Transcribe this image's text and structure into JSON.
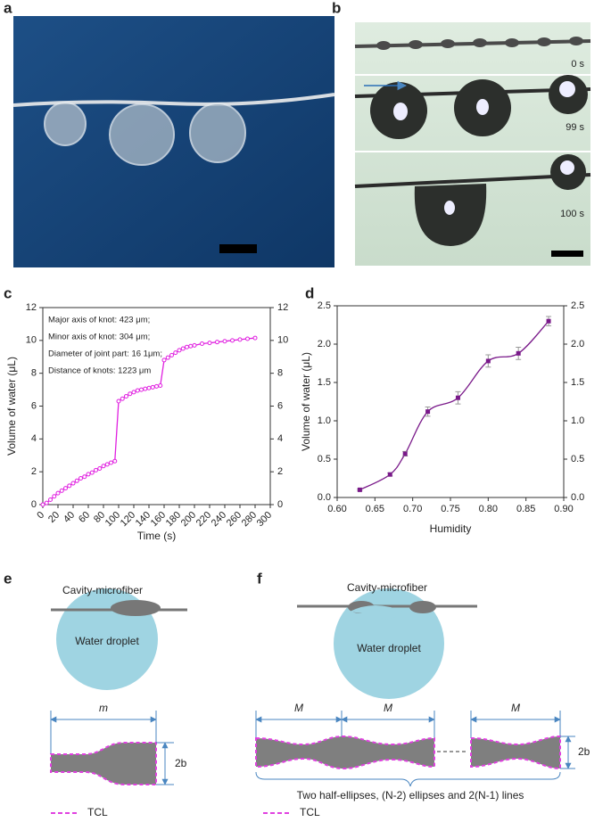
{
  "panel_labels": [
    "a",
    "b",
    "c",
    "d",
    "e",
    "f"
  ],
  "panel_b": {
    "times": [
      "0 s",
      "99 s",
      "100 s"
    ]
  },
  "chart_data": [
    {
      "type": "line",
      "color": "#e020e0",
      "xlabel": "Time (s)",
      "ylabel": "Volume of water (μL)",
      "annotations": [
        "Major axis of knot: 423 μm;",
        "Minor axis of knot: 304 μm;",
        "Diameter of joint part: 16 1μm;",
        "Distance of knots: 1223 μm"
      ],
      "x": [
        0,
        5,
        10,
        15,
        20,
        25,
        30,
        35,
        40,
        45,
        50,
        55,
        60,
        65,
        70,
        75,
        80,
        85,
        90,
        95,
        100,
        105,
        110,
        115,
        120,
        125,
        130,
        135,
        140,
        145,
        150,
        155,
        160,
        165,
        170,
        175,
        180,
        185,
        190,
        195,
        200,
        210,
        220,
        230,
        240,
        250,
        260,
        270,
        280
      ],
      "values": [
        0,
        0.1,
        0.3,
        0.5,
        0.7,
        0.85,
        1.0,
        1.15,
        1.3,
        1.45,
        1.6,
        1.7,
        1.85,
        1.95,
        2.1,
        2.2,
        2.35,
        2.45,
        2.55,
        2.65,
        6.3,
        6.45,
        6.6,
        6.75,
        6.85,
        6.95,
        7.0,
        7.05,
        7.1,
        7.15,
        7.2,
        7.25,
        8.8,
        8.95,
        9.1,
        9.25,
        9.4,
        9.5,
        9.6,
        9.65,
        9.7,
        9.8,
        9.85,
        9.9,
        9.95,
        10.0,
        10.05,
        10.1,
        10.15
      ],
      "xlim": [
        0,
        300
      ],
      "xticks": [
        0,
        20,
        40,
        60,
        80,
        100,
        120,
        140,
        160,
        180,
        200,
        220,
        240,
        260,
        280,
        300
      ],
      "ylim": [
        0,
        12
      ],
      "yticks": [
        0,
        2,
        4,
        6,
        8,
        10,
        12
      ],
      "y2lim": [
        0,
        12
      ],
      "y2ticks": [
        0,
        2,
        4,
        6,
        8,
        10,
        12
      ]
    },
    {
      "type": "line",
      "color": "#7a1a8a",
      "xlabel": "Humidity",
      "ylabel": "Volume of water (μL)",
      "x": [
        0.63,
        0.67,
        0.69,
        0.72,
        0.76,
        0.8,
        0.84,
        0.88
      ],
      "values": [
        0.1,
        0.3,
        0.57,
        1.12,
        1.3,
        1.78,
        1.88,
        2.3
      ],
      "errors": [
        0.01,
        0.02,
        0.03,
        0.06,
        0.08,
        0.08,
        0.08,
        0.06
      ],
      "xlim": [
        0.6,
        0.9
      ],
      "xticks": [
        {
          "value": 0.6,
          "label": "0.60"
        },
        0.65,
        {
          "value": 0.7,
          "label": "0.70"
        },
        0.75,
        {
          "value": 0.8,
          "label": "0.80"
        },
        0.85,
        {
          "value": 0.9,
          "label": "0.90"
        }
      ],
      "ylim": [
        0,
        2.5
      ],
      "yticks": [
        {
          "value": 0,
          "label": "0.0"
        },
        0.5,
        {
          "value": 1,
          "label": "1.0"
        },
        1.5,
        {
          "value": 2,
          "label": "2.0"
        },
        2.5
      ],
      "y2lim": [
        0,
        2.5
      ],
      "y2ticks": [
        {
          "value": 0,
          "label": "0.0"
        },
        0.5,
        {
          "value": 1,
          "label": "1.0"
        },
        1.5,
        {
          "value": 2,
          "label": "2.0"
        },
        2.5
      ]
    }
  ],
  "panel_e": {
    "fiber_label": "Cavity-microfiber",
    "droplet_label": "Water droplet",
    "width_label": "m",
    "height_label": "2b",
    "legend": "TCL"
  },
  "panel_f": {
    "fiber_label": "Cavity-microfiber",
    "droplet_label": "Water droplet",
    "width_labels": [
      "M",
      "M",
      "M"
    ],
    "height_label": "2b",
    "caption": "Two half-ellipses, (N-2) ellipses and 2(N-1) lines",
    "legend": "TCL"
  }
}
